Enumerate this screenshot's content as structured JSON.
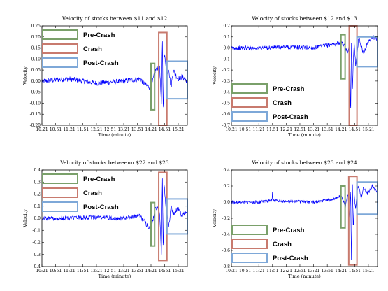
{
  "colors": {
    "line": "#0000ff",
    "pre_crash": "#7aa06a",
    "crash": "#c87a6e",
    "post_crash": "#7ea8d8",
    "axis": "#000000"
  },
  "chart_data": [
    {
      "type": "line",
      "title": "Velocity of stocks between $11 and $12",
      "xlabel": "Time (minute)",
      "ylabel": "Velocity",
      "x_ticks": [
        "10:21",
        "10:51",
        "11:21",
        "11:51",
        "12:21",
        "12:51",
        "13:21",
        "13:51",
        "14:21",
        "14:51",
        "15:21"
      ],
      "x_range": [
        "10:21",
        "15:41"
      ],
      "ylim": [
        -0.2,
        0.25
      ],
      "y_ticks": [
        "0.25",
        "0.20",
        "0.15",
        "0.10",
        "0.05",
        "0.00",
        "-0.05",
        "-0.10",
        "-0.15",
        "-0.20"
      ],
      "legend": [
        "Pre-Crash",
        "Crash",
        "Post-Crash"
      ],
      "legend_position": "upper-left",
      "series": [
        {
          "noise": 0.012,
          "x": [
            "10:21",
            "11:21",
            "12:21",
            "13:21",
            "13:56",
            "14:11",
            "14:21",
            "14:31",
            "14:40",
            "14:44",
            "14:46",
            "14:48",
            "14:50",
            "14:53",
            "14:56",
            "15:00",
            "15:05",
            "15:10",
            "15:20",
            "15:30",
            "15:40"
          ],
          "y": [
            0.0,
            0.01,
            -0.01,
            0.0,
            0.01,
            -0.02,
            -0.03,
            0.05,
            0.07,
            -0.12,
            0.21,
            -0.17,
            0.12,
            0.09,
            0.03,
            0.06,
            -0.03,
            0.05,
            0.01,
            0.02,
            0.0
          ]
        }
      ],
      "regions": [
        {
          "label": "Pre-Crash",
          "x0": "14:21",
          "x1": "14:29",
          "y0": -0.13,
          "y1": 0.08
        },
        {
          "label": "Crash",
          "x0": "14:38",
          "x1": "14:56",
          "y0": -0.2,
          "y1": 0.22
        },
        {
          "label": "Post-Crash",
          "x0": "14:56",
          "x1": "15:41",
          "y0": -0.08,
          "y1": 0.09
        }
      ]
    },
    {
      "type": "line",
      "title": "Velocity of stocks between $12 and $13",
      "xlabel": "Time (minute)",
      "ylabel": "Velocity",
      "x_ticks": [
        "10:21",
        "10:51",
        "11:21",
        "11:51",
        "12:21",
        "12:51",
        "13:21",
        "13:51",
        "14:21",
        "14:51",
        "15:21"
      ],
      "x_range": [
        "10:21",
        "15:41"
      ],
      "ylim": [
        -0.7,
        0.2
      ],
      "y_ticks": [
        "0.2",
        "0.1",
        "0.0",
        "-0.1",
        "-0.2",
        "-0.3",
        "-0.4",
        "-0.5",
        "-0.6",
        "-0.7"
      ],
      "legend": [
        "Pre-Crash",
        "Crash",
        "Post-Crash"
      ],
      "legend_position": "lower-left",
      "series": [
        {
          "noise": 0.02,
          "x": [
            "10:21",
            "11:21",
            "12:21",
            "13:21",
            "13:56",
            "14:11",
            "14:21",
            "14:31",
            "14:36",
            "14:40",
            "14:42",
            "14:44",
            "14:46",
            "14:48",
            "14:50",
            "14:53",
            "14:56",
            "15:00",
            "15:05",
            "15:10",
            "15:20",
            "15:30",
            "15:40"
          ],
          "y": [
            0.0,
            0.0,
            0.01,
            0.0,
            0.03,
            0.04,
            0.05,
            0.0,
            -0.05,
            0.1,
            -0.65,
            0.08,
            -0.4,
            -0.1,
            0.06,
            -0.15,
            -0.07,
            0.1,
            0.02,
            -0.05,
            0.05,
            0.1,
            0.08
          ]
        }
      ],
      "regions": [
        {
          "label": "Pre-Crash",
          "x0": "14:21",
          "x1": "14:30",
          "y0": -0.28,
          "y1": 0.12
        },
        {
          "label": "Crash",
          "x0": "14:39",
          "x1": "14:56",
          "y0": -0.7,
          "y1": 0.2
        },
        {
          "label": "Post-Crash",
          "x0": "14:56",
          "x1": "15:41",
          "y0": -0.17,
          "y1": 0.1
        }
      ]
    },
    {
      "type": "line",
      "title": "Velocity of stocks betweenn $22 and $23",
      "xlabel": "Time (minute)",
      "ylabel": "Velocity",
      "x_ticks": [
        "10:21",
        "10:51",
        "11:21",
        "11:51",
        "12:21",
        "12:51",
        "13:21",
        "13:51",
        "14:21",
        "14:51",
        "15:21"
      ],
      "x_range": [
        "10:21",
        "15:41"
      ],
      "ylim": [
        -0.4,
        0.4
      ],
      "y_ticks": [
        "0.4",
        "0.3",
        "0.2",
        "0.1",
        "0.0",
        "-0.1",
        "-0.2",
        "-0.3",
        "-0.4"
      ],
      "legend": [
        "Pre-Crash",
        "Crash",
        "Post-Crash"
      ],
      "legend_position": "upper-left",
      "series": [
        {
          "noise": 0.02,
          "x": [
            "10:21",
            "11:21",
            "12:21",
            "13:21",
            "13:56",
            "14:11",
            "14:21",
            "14:31",
            "14:40",
            "14:44",
            "14:46",
            "14:48",
            "14:50",
            "14:53",
            "14:56",
            "15:00",
            "15:05",
            "15:10",
            "15:20",
            "15:30",
            "15:40"
          ],
          "y": [
            0.0,
            0.0,
            0.01,
            0.0,
            0.02,
            -0.05,
            -0.1,
            0.1,
            0.05,
            -0.3,
            0.38,
            -0.33,
            0.3,
            0.12,
            0.06,
            -0.08,
            0.1,
            0.03,
            0.08,
            0.02,
            0.06
          ]
        }
      ],
      "regions": [
        {
          "label": "Pre-Crash",
          "x0": "14:21",
          "x1": "14:29",
          "y0": -0.23,
          "y1": 0.13
        },
        {
          "label": "Crash",
          "x0": "14:38",
          "x1": "14:56",
          "y0": -0.35,
          "y1": 0.38
        },
        {
          "label": "Post-Crash",
          "x0": "14:56",
          "x1": "15:41",
          "y0": -0.13,
          "y1": 0.16
        }
      ]
    },
    {
      "type": "line",
      "title": "Velocity of stocks between $23 and $24",
      "xlabel": "Time (minute)",
      "ylabel": "Velocity",
      "x_ticks": [
        "10:21",
        "10:51",
        "11:21",
        "11:51",
        "12:21",
        "12:51",
        "13:21",
        "13:51",
        "14:21",
        "14:51",
        "15:21"
      ],
      "x_range": [
        "10:21",
        "15:41"
      ],
      "ylim": [
        -0.8,
        0.4
      ],
      "y_ticks": [
        "0.4",
        "0.2",
        "0.0",
        "-0.2",
        "-0.4",
        "-0.6",
        "-0.8"
      ],
      "legend": [
        "Pre-Crash",
        "Crash",
        "Post-Crash"
      ],
      "legend_position": "lower-left",
      "series": [
        {
          "noise": 0.02,
          "x": [
            "10:21",
            "11:21",
            "11:50",
            "11:51",
            "11:52",
            "12:21",
            "13:21",
            "13:56",
            "14:11",
            "14:21",
            "14:31",
            "14:36",
            "14:40",
            "14:42",
            "14:44",
            "14:46",
            "14:48",
            "14:50",
            "14:53",
            "14:56",
            "15:00",
            "15:05",
            "15:10",
            "15:20",
            "15:30",
            "15:40"
          ],
          "y": [
            0.0,
            0.0,
            0.02,
            0.15,
            0.02,
            0.01,
            0.0,
            0.03,
            0.05,
            0.08,
            -0.05,
            0.1,
            -0.2,
            0.2,
            -0.78,
            0.25,
            -0.4,
            0.1,
            -0.1,
            0.15,
            0.2,
            0.05,
            0.18,
            0.1,
            0.2,
            0.12
          ]
        }
      ],
      "regions": [
        {
          "label": "Pre-Crash",
          "x0": "14:21",
          "x1": "14:30",
          "y0": -0.32,
          "y1": 0.2
        },
        {
          "label": "Crash",
          "x0": "14:38",
          "x1": "14:56",
          "y0": -0.78,
          "y1": 0.32
        },
        {
          "label": "Post-Crash",
          "x0": "14:56",
          "x1": "15:41",
          "y0": -0.15,
          "y1": 0.25
        }
      ]
    }
  ]
}
